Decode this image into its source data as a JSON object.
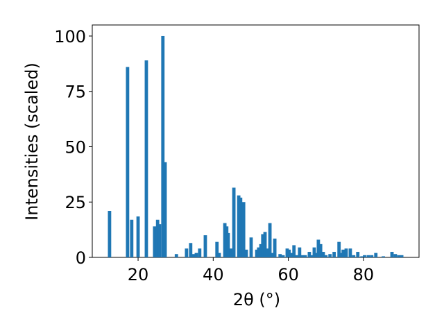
{
  "chart_data": {
    "type": "bar",
    "x_label": "2θ (°)",
    "y_label": "Intensities (scaled)",
    "x": [
      12.4,
      17.2,
      18.3,
      20.0,
      22.2,
      24.4,
      25.2,
      25.7,
      26.6,
      27.2,
      30.2,
      32.9,
      34.0,
      34.8,
      35.5,
      36.4,
      37.9,
      41.0,
      41.6,
      43.1,
      43.6,
      44.0,
      44.7,
      45.5,
      46.8,
      47.3,
      48.1,
      48.8,
      50.1,
      51.6,
      52.1,
      52.7,
      53.2,
      53.8,
      54.3,
      55.1,
      55.8,
      56.4,
      57.8,
      58.6,
      59.7,
      60.2,
      60.8,
      61.5,
      62.3,
      63.0,
      63.8,
      64.5,
      65.6,
      66.3,
      66.9,
      67.4,
      68.0,
      68.6,
      69.3,
      70.0,
      71.1,
      72.2,
      73.5,
      74.1,
      74.6,
      75.4,
      76.5,
      77.4,
      78.5,
      79.6,
      80.3,
      81.3,
      82.2,
      83.3,
      85.3,
      87.6,
      88.5,
      89.4,
      90.2
    ],
    "values": [
      21,
      86,
      17,
      18.5,
      89,
      14,
      17,
      15,
      100,
      43,
      1.5,
      4,
      6.5,
      1.5,
      2,
      4,
      10,
      7,
      2,
      15.5,
      14,
      11,
      4,
      31.5,
      28,
      27,
      25,
      3.5,
      9,
      3.5,
      4.5,
      6,
      10.5,
      11.5,
      4,
      15.5,
      2,
      8.5,
      1.5,
      1,
      4,
      3.5,
      2,
      5.5,
      1,
      4.5,
      1,
      1,
      2.5,
      1,
      4.5,
      2,
      8,
      6,
      2.5,
      1,
      1.5,
      2.5,
      7,
      2,
      3.5,
      4,
      4,
      1,
      2.5,
      0.5,
      1,
      1,
      1,
      2,
      0.5,
      2.5,
      1.5,
      1,
      1
    ],
    "color": "#1f77b4",
    "xlim": [
      7.8,
      94.8
    ],
    "ylim": [
      0,
      105
    ],
    "xticks": [
      20,
      40,
      60,
      80
    ],
    "yticks": [
      0,
      25,
      50,
      75,
      100
    ]
  }
}
